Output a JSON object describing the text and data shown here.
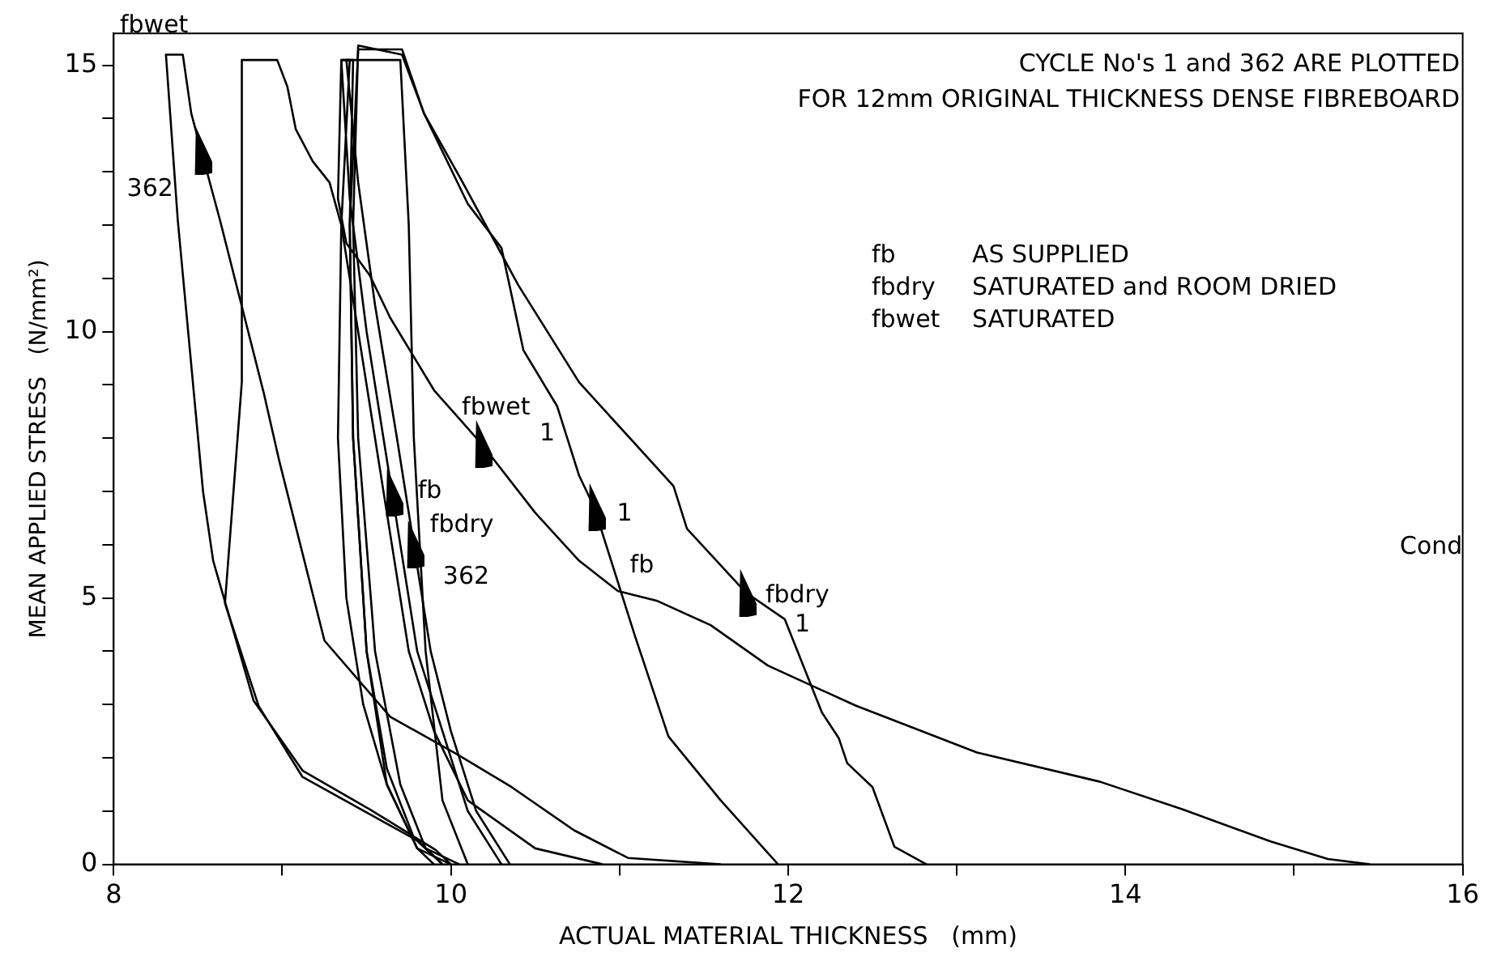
{
  "chart_data": {
    "type": "line",
    "xlabel": "ACTUAL MATERIAL THICKNESS   (mm)",
    "ylabel": "MEAN APPLIED STRESS   (N/mm²)",
    "xlim": [
      8,
      16
    ],
    "xticks": [
      8,
      {
        "value": 9,
        "label": null
      },
      10,
      {
        "value": 11,
        "label": null
      },
      12,
      {
        "value": 13,
        "label": null
      },
      14,
      {
        "value": 15,
        "label": null
      },
      16
    ],
    "ylim": [
      0,
      15.6
    ],
    "yticks": [
      0,
      {
        "value": 1,
        "label": null
      },
      {
        "value": 2,
        "label": null
      },
      {
        "value": 3,
        "label": null
      },
      {
        "value": 4,
        "label": null
      },
      5,
      {
        "value": 6,
        "label": null
      },
      {
        "value": 7,
        "label": null
      },
      {
        "value": 8,
        "label": null
      },
      {
        "value": 9,
        "label": null
      },
      10,
      {
        "value": 11,
        "label": null
      },
      {
        "value": 12,
        "label": null
      },
      {
        "value": 13,
        "label": null
      },
      {
        "value": 14,
        "label": null
      },
      15
    ],
    "grid": false,
    "legend": false,
    "marker": "none",
    "line_style": "solid",
    "series": [
      {
        "color": "#000000",
        "x": [
          15.45,
          15.2,
          14.86,
          14.34,
          13.85,
          13.12,
          12.4,
          11.88,
          11.54,
          11.22,
          10.99,
          10.76,
          10.5,
          10.18,
          9.9,
          9.64,
          9.52,
          9.38,
          9.33,
          9.35,
          9.7,
          9.75,
          9.78,
          9.85,
          9.95,
          10.1
        ],
        "values": [
          0,
          0.1,
          0.43,
          1.03,
          1.55,
          2.1,
          2.98,
          3.73,
          4.49,
          4.95,
          5.13,
          5.7,
          6.6,
          7.9,
          8.9,
          10.26,
          11.05,
          11.66,
          12.5,
          15.1,
          15.1,
          12,
          8,
          4,
          1.2,
          0
        ]
      },
      {
        "color": "#000000",
        "x": [
          11.94,
          11.6,
          11.29,
          11.09,
          10.85,
          10.76,
          10.63,
          10.43,
          10.3,
          10.1,
          9.84,
          9.71,
          9.45,
          9.42,
          9.45,
          9.55,
          9.7,
          9.85,
          10.05
        ],
        "values": [
          0,
          1.2,
          2.4,
          4.3,
          6.7,
          7.3,
          8.6,
          9.65,
          11.57,
          12.4,
          14.1,
          15.2,
          15.37,
          12,
          8,
          4,
          1.5,
          0.3,
          0
        ]
      },
      {
        "color": "#000000",
        "x": [
          12.82,
          12.63,
          12.5,
          12.35,
          12.3,
          12.2,
          11.98,
          11.75,
          11.4,
          11.32,
          10.76,
          10.4,
          10.07,
          9.84,
          9.71,
          9.45,
          9.4,
          9.42,
          9.5,
          9.62,
          9.8,
          10.0
        ],
        "values": [
          0,
          0.33,
          1.45,
          1.9,
          2.37,
          2.85,
          4.6,
          5.1,
          6.3,
          7.1,
          9.05,
          10.87,
          12.8,
          14.1,
          15.3,
          15.3,
          12,
          8,
          4,
          1.5,
          0.3,
          0
        ]
      },
      {
        "color": "#000000",
        "x": [
          11.6,
          11.05,
          10.73,
          10.36,
          10.04,
          9.64,
          9.25,
          8.98,
          8.89,
          8.63,
          8.52,
          8.46,
          8.41,
          8.31,
          8.38,
          8.53,
          8.59,
          8.83,
          9.12,
          9.52,
          9.91,
          10.0
        ],
        "values": [
          0,
          0.12,
          0.64,
          1.45,
          2.06,
          2.77,
          4.2,
          7.6,
          8.85,
          12.1,
          13.39,
          14.1,
          15.2,
          15.2,
          12.1,
          7.0,
          5.7,
          3.07,
          1.76,
          1.03,
          0.27,
          0
        ]
      },
      {
        "color": "#000000",
        "x": [
          10.9,
          10.5,
          10.1,
          9.9,
          9.75,
          9.65,
          9.55,
          9.45,
          9.35,
          9.28,
          9.18,
          9.08,
          9.03,
          8.97,
          8.76,
          8.76,
          8.66,
          8.86,
          9.12,
          9.81,
          9.95
        ],
        "values": [
          0,
          0.3,
          1.2,
          2.5,
          4,
          6,
          8,
          10,
          12,
          12.8,
          13.2,
          13.8,
          14.6,
          15.1,
          15.1,
          9.05,
          4.9,
          2.97,
          1.64,
          0.43,
          0
        ]
      },
      {
        "color": "#000000",
        "x": [
          10.3,
          10.1,
          9.95,
          9.8,
          9.7,
          9.65,
          9.6,
          9.5,
          9.4,
          9.35,
          9.4,
          9.35,
          9.33,
          9.38,
          9.48,
          9.62,
          9.8,
          9.9
        ],
        "values": [
          0,
          1,
          2.5,
          4,
          6,
          7,
          8,
          10,
          12.5,
          15.1,
          15.1,
          12,
          8,
          5,
          3,
          1.5,
          0.3,
          0
        ]
      },
      {
        "color": "#000000",
        "x": [
          10.35,
          10.15,
          10.0,
          9.88,
          9.78,
          9.68,
          9.55,
          9.45,
          9.38,
          9.42,
          9.4,
          9.42,
          9.5,
          9.62,
          9.78,
          9.95
        ],
        "values": [
          0,
          1,
          2.5,
          4,
          6,
          8,
          10.5,
          12.8,
          15.1,
          15.1,
          12,
          8,
          4,
          1.8,
          0.5,
          0
        ]
      }
    ],
    "annotations": [
      {
        "text": "362",
        "x": 8.52,
        "y": 13.39
      },
      {
        "text": "fbwet\n1",
        "x": 10.18,
        "y": 7.9
      },
      {
        "text": "1\nfb",
        "x": 10.85,
        "y": 6.7
      },
      {
        "text": "fbdry\n1",
        "x": 11.75,
        "y": 5.1
      },
      {
        "text": "fb",
        "x": 9.65,
        "y": 7
      },
      {
        "text": "fbdry\n362",
        "x": 9.78,
        "y": 6
      },
      "fbwet",
      "CYCLE No's 1 and 362 ARE PLOTTED",
      "FOR 12mm ORIGINAL THICKNESS DENSE FIBREBOARD",
      "fb",
      "AS SUPPLIED",
      "fbdry",
      "SATURATED and ROOM DRIED",
      "fbwet",
      "SATURATED",
      "Cond"
    ]
  }
}
